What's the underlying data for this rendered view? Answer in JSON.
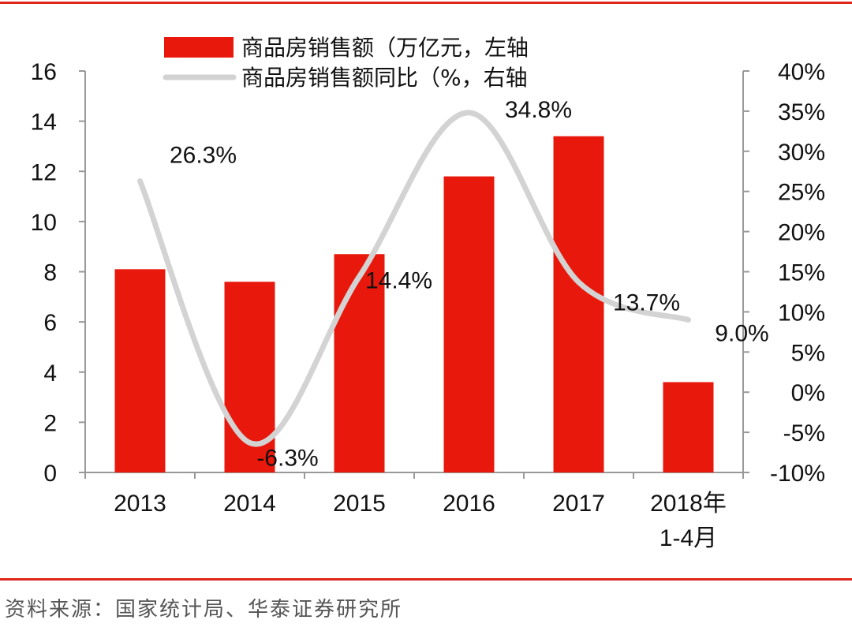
{
  "chart_data": {
    "type": "bar+line",
    "categories": [
      [
        "2013"
      ],
      [
        "2014"
      ],
      [
        "2015"
      ],
      [
        "2016"
      ],
      [
        "2017"
      ],
      [
        "2018年",
        "1-4月"
      ]
    ],
    "series": [
      {
        "name": "商品房销售额（万亿元，左轴",
        "type": "bar",
        "axis": "left",
        "color": "#e8180c",
        "values": [
          8.1,
          7.6,
          8.7,
          11.8,
          13.4,
          3.6
        ]
      },
      {
        "name": "商品房销售额同比（%，右轴",
        "type": "line",
        "axis": "right",
        "color": "#d3d3d3",
        "values": [
          26.3,
          -6.3,
          14.4,
          34.8,
          13.7,
          9.0
        ],
        "labels": [
          "26.3%",
          "-6.3%",
          "14.4%",
          "34.8%",
          "13.7%",
          "9.0%"
        ]
      }
    ],
    "y_left": {
      "min": 0,
      "max": 16,
      "ticks": [
        "0",
        "2",
        "4",
        "6",
        "8",
        "10",
        "12",
        "14",
        "16"
      ]
    },
    "y_right": {
      "min": -10,
      "max": 40,
      "ticks": [
        "-10%",
        "-5%",
        "0%",
        "5%",
        "10%",
        "15%",
        "20%",
        "25%",
        "30%",
        "35%",
        "40%"
      ]
    },
    "legend_position": "top"
  },
  "source_text": "资料来源：国家统计局、华泰证券研究所"
}
